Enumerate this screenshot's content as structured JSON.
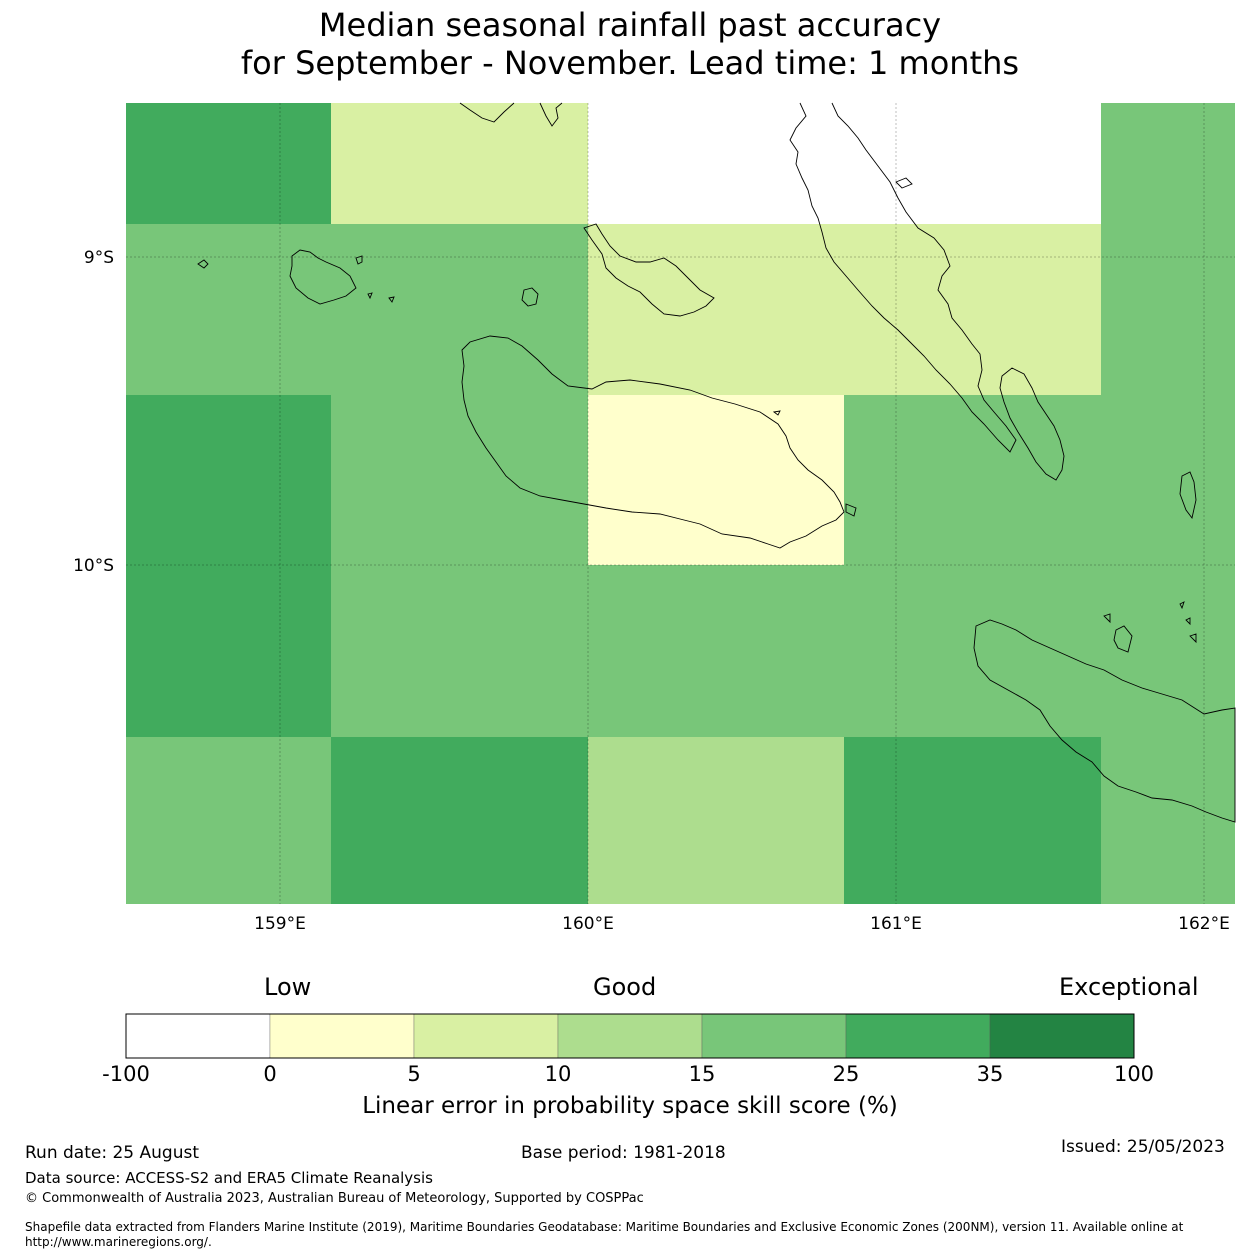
{
  "title_line1": "Median seasonal rainfall past accuracy",
  "title_line2": "for September - November. Lead time: 1 months",
  "map": {
    "lat_labels": [
      "9°S",
      "10°S"
    ],
    "lon_labels": [
      "159°E",
      "160°E",
      "161°E",
      "162°E"
    ],
    "colors": {
      "score_0_5": "#ffffcc",
      "score_5_10": "#d9f0a3",
      "score_10_15": "#addd8e",
      "score_15_25": "#78c679",
      "score_25_35": "#41ab5d",
      "score_35_100": "#238443",
      "score_below_0": "#ffffff"
    }
  },
  "colorbar": {
    "headings": {
      "low": "Low",
      "good": "Good",
      "exceptional": "Exceptional"
    },
    "ticks": [
      "-100",
      "0",
      "5",
      "10",
      "15",
      "25",
      "35",
      "100"
    ],
    "colors": [
      "#ffffff",
      "#ffffcc",
      "#d9f0a3",
      "#addd8e",
      "#78c679",
      "#41ab5d",
      "#238443"
    ],
    "label": "Linear error in probability space skill score (%)"
  },
  "footer": {
    "run_date": "Run date: 25 August",
    "base_period": "Base period: 1981-2018",
    "issued": "Issued: 25/05/2023",
    "data_source": "Data source: ACCESS-S2 and ERA5 Climate Reanalysis",
    "copyright": "© Commonwealth of Australia 2023, Australian Bureau of Meteorology, Supported by COSPPac",
    "shapefile_line1": "Shapefile data extracted from Flanders Marine Institute (2019), Maritime Boundaries Geodatabase: Maritime Boundaries and Exclusive Economic Zones (200NM), version 11. Available online at",
    "shapefile_line2": "http://www.marineregions.org/."
  }
}
